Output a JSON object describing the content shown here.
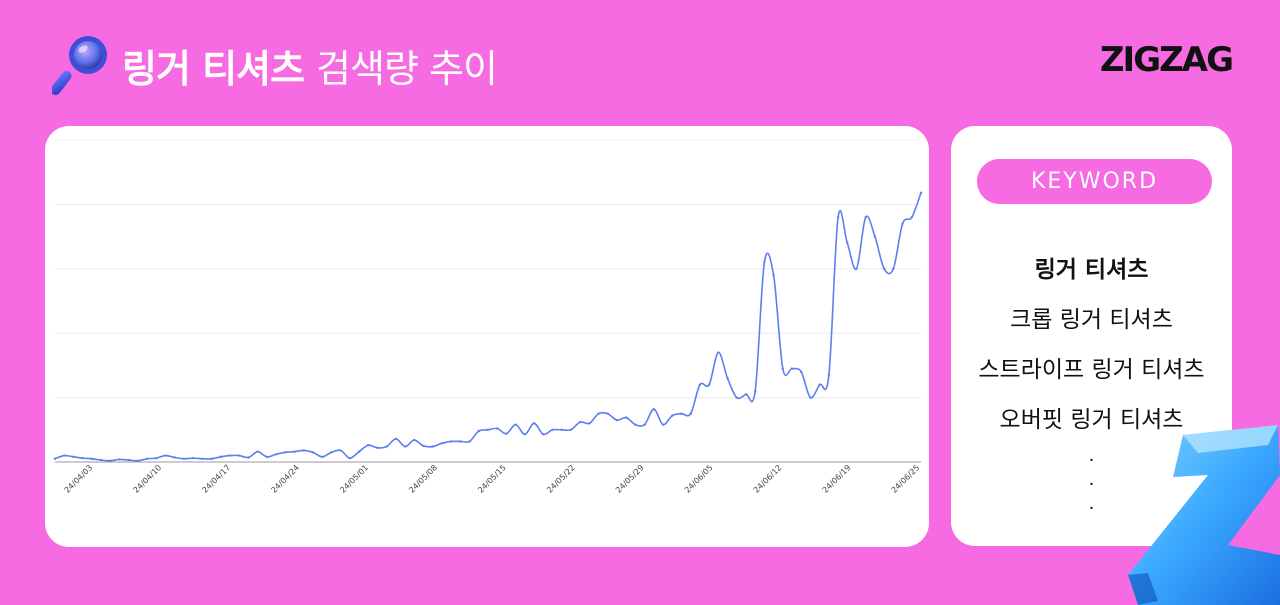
{
  "header": {
    "title_bold": "링거 티셔츠",
    "title_light": "검색량 추이",
    "icon": "magnifier-icon"
  },
  "brand": {
    "logo": "ZIGZAG"
  },
  "keywords": {
    "pill_label": "KEYWORD",
    "items": [
      {
        "label": "링거 티셔츠",
        "active": true
      },
      {
        "label": "크롭 링거 티셔츠",
        "active": false
      },
      {
        "label": "스트라이프 링거 티셔츠",
        "active": false
      },
      {
        "label": "오버핏 링거 티셔츠",
        "active": false
      }
    ],
    "ellipsis": [
      ".",
      ".",
      "."
    ]
  },
  "colors": {
    "background": "#f76be2",
    "line": "#5b7ff0",
    "card": "#ffffff"
  },
  "chart_data": {
    "type": "line",
    "title": "",
    "xlabel": "",
    "ylabel": "",
    "ylim": [
      0,
      50
    ],
    "grid": true,
    "x_ticks": [
      "24/04/03",
      "24/04/10",
      "24/04/17",
      "24/04/24",
      "24/05/01",
      "24/05/08",
      "24/05/15",
      "24/05/22",
      "24/05/29",
      "24/06/05",
      "24/06/12",
      "24/06/19",
      "24/06/25"
    ],
    "series": [
      {
        "values": [
          0.5,
          1,
          0.8,
          0.6,
          0.5,
          0.3,
          0.2,
          0.4,
          0.3,
          0.2,
          0.5,
          0.6,
          1,
          0.7,
          0.5,
          0.6,
          0.5,
          0.5,
          0.8,
          1,
          1,
          0.7,
          1.6,
          0.8,
          1.2,
          1.5,
          1.6,
          1.8,
          1.5,
          0.8,
          1.5,
          1.8,
          0.6,
          1.6,
          2.6,
          2.2,
          2.4,
          3.6,
          2.4,
          3.4,
          2.5,
          2.4,
          2.9,
          3.2,
          3.2,
          3.2,
          4.8,
          5,
          5.2,
          4.4,
          5.8,
          4.3,
          6,
          4.3,
          5,
          5,
          5,
          6.2,
          6,
          7.5,
          7.5,
          6.5,
          6.9,
          5.8,
          5.8,
          8.2,
          5.8,
          7.2,
          7.5,
          7.5,
          12,
          12,
          17,
          13,
          10,
          10.5,
          11,
          31,
          29,
          14.5,
          14.5,
          14,
          10,
          12,
          13.5,
          38,
          34,
          30,
          38,
          35,
          30,
          30,
          37,
          38,
          41.8
        ]
      }
    ]
  }
}
